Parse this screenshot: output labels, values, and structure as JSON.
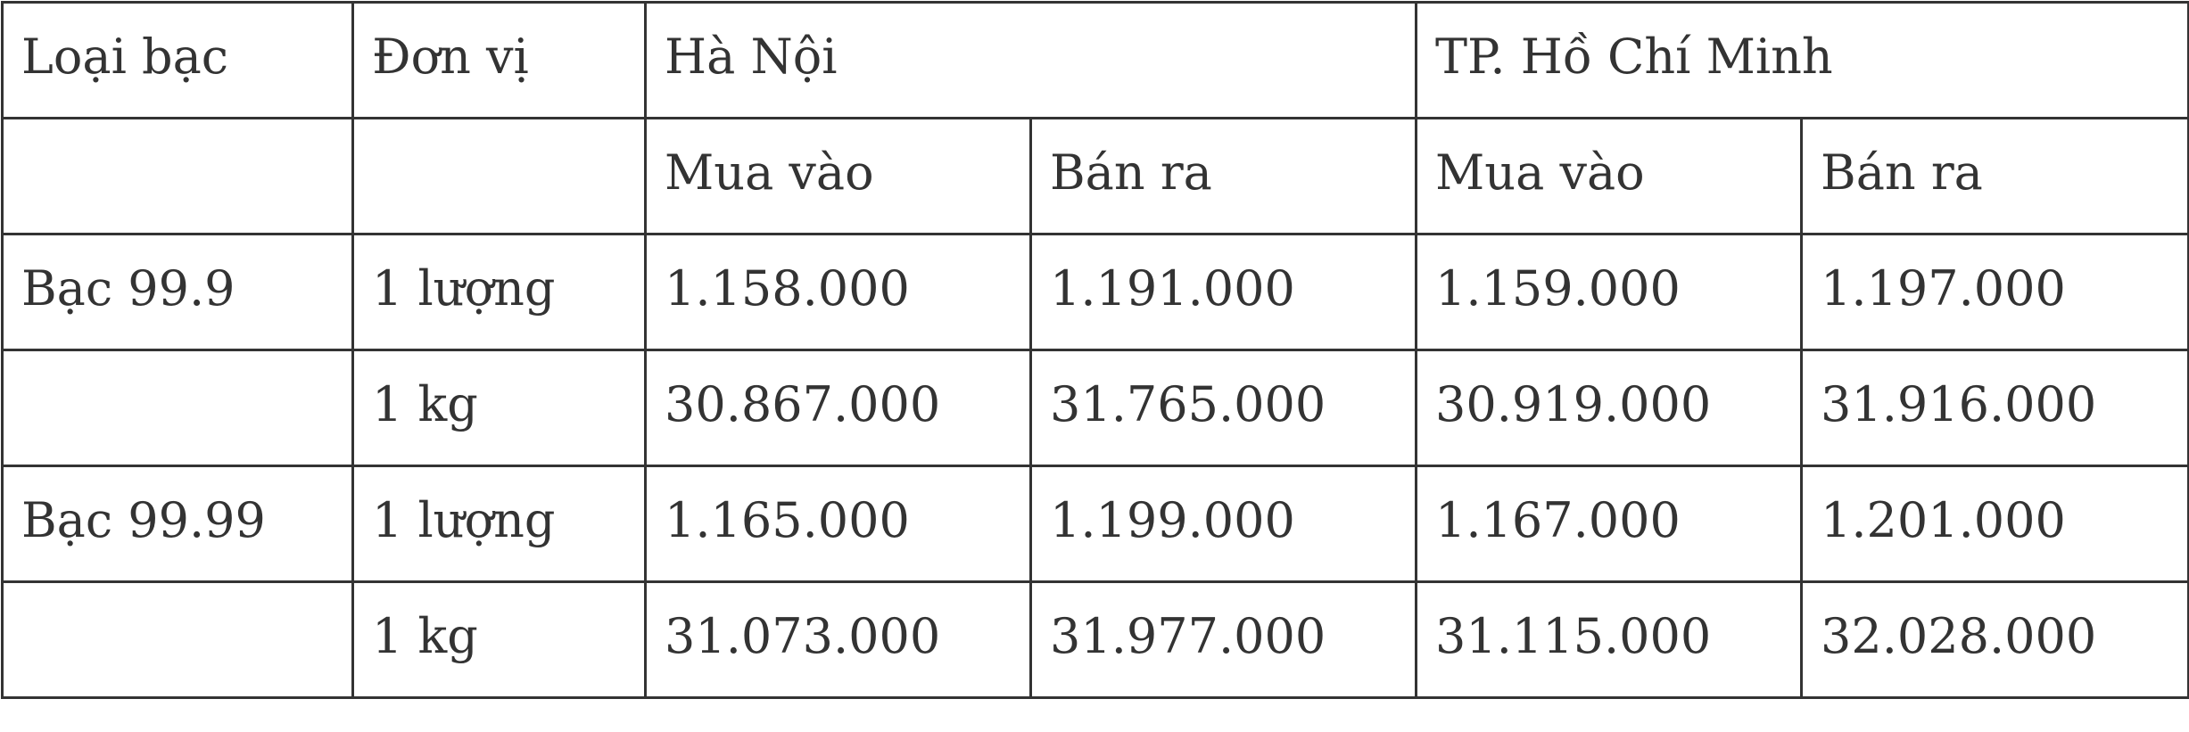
{
  "table": {
    "header": {
      "type": "Loại bạc",
      "unit": "Đơn vị",
      "city1": "Hà Nội",
      "city2": "TP. Hồ Chí Minh"
    },
    "subheader": {
      "buy1": "Mua vào",
      "sell1": "Bán ra",
      "buy2": "Mua vào",
      "sell2": "Bán ra"
    },
    "rows": [
      {
        "type": "Bạc 99.9",
        "unit": "1 lượng",
        "hn_buy": "1.158.000",
        "hn_sell": "1.191.000",
        "hcm_buy": "1.159.000",
        "hcm_sell": "1.197.000"
      },
      {
        "type": "",
        "unit": "1 kg",
        "hn_buy": "30.867.000",
        "hn_sell": "31.765.000",
        "hcm_buy": "30.919.000",
        "hcm_sell": "31.916.000"
      },
      {
        "type": "Bạc 99.99",
        "unit": "1 lượng",
        "hn_buy": "1.165.000",
        "hn_sell": "1.199.000",
        "hcm_buy": "1.167.000",
        "hcm_sell": "1.201.000"
      },
      {
        "type": "",
        "unit": "1 kg",
        "hn_buy": "31.073.000",
        "hn_sell": "31.977.000",
        "hcm_buy": "31.115.000",
        "hcm_sell": "32.028.000"
      }
    ]
  }
}
